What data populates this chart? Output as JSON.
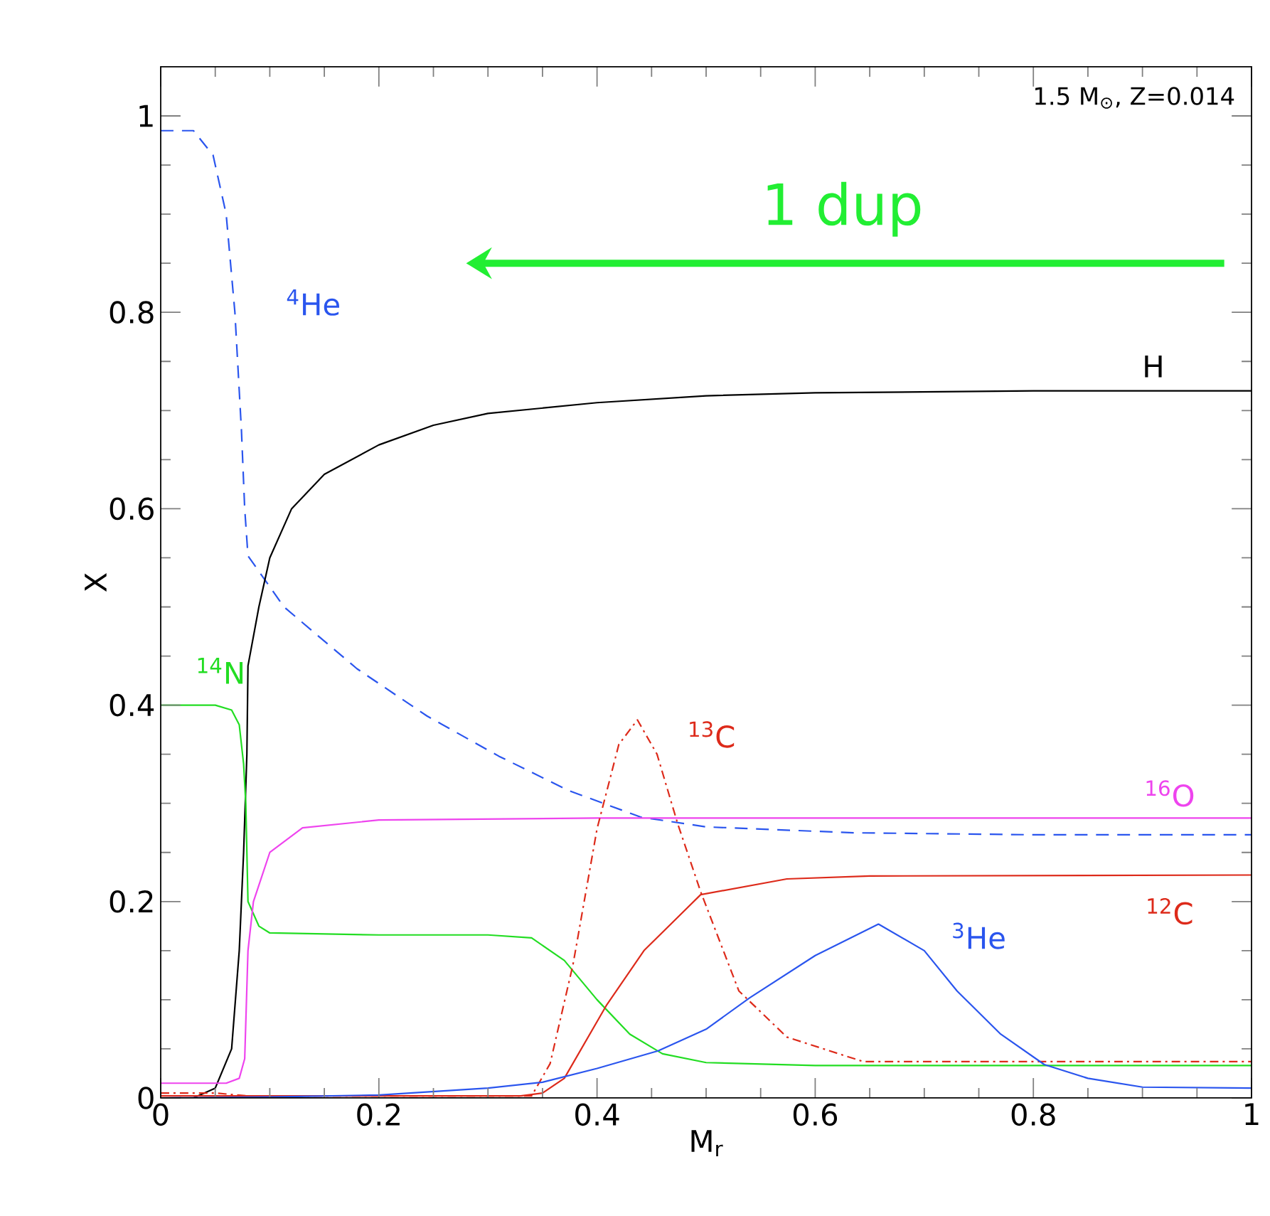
{
  "chart_data": {
    "type": "line",
    "xlabel": "M$_{r}$",
    "ylabel": "X",
    "xlim": [
      0,
      1
    ],
    "ylim": [
      0,
      1.05
    ],
    "xticks": [
      0,
      0.2,
      0.4,
      0.6,
      0.8,
      1
    ],
    "yticks": [
      0,
      0.2,
      0.4,
      0.6,
      0.8,
      1
    ],
    "grid": false,
    "legend": false,
    "marker": "none",
    "annotations": [
      "1.5 M$_{⊙}$, Z=0.014",
      "1 dup"
    ],
    "series": [
      {
        "name": "$^{4}$He",
        "color": "#2a55ee",
        "line_style": "dashed",
        "x": [
          0,
          0.03,
          0.048,
          0.06,
          0.068,
          0.074,
          0.077,
          0.08,
          0.113,
          0.18,
          0.244,
          0.31,
          0.374,
          0.44,
          0.5,
          0.635,
          0.8,
          1
        ],
        "values": [
          0.985,
          0.985,
          0.96,
          0.9,
          0.8,
          0.68,
          0.6,
          0.552,
          0.5,
          0.437,
          0.389,
          0.348,
          0.313,
          0.286,
          0.276,
          0.27,
          0.268,
          0.268
        ]
      },
      {
        "name": "H",
        "color": "#000000",
        "line_style": "solid",
        "x": [
          0,
          0.03,
          0.05,
          0.065,
          0.072,
          0.076,
          0.079,
          0.08,
          0.09,
          0.1,
          0.12,
          0.15,
          0.2,
          0.25,
          0.3,
          0.4,
          0.5,
          0.6,
          0.8,
          1
        ],
        "values": [
          0,
          0,
          0.01,
          0.05,
          0.15,
          0.25,
          0.35,
          0.44,
          0.5,
          0.55,
          0.6,
          0.635,
          0.665,
          0.685,
          0.697,
          0.708,
          0.715,
          0.718,
          0.72,
          0.72
        ]
      },
      {
        "name": "$^{14}$N",
        "color": "#22dd22",
        "line_style": "solid",
        "x": [
          0,
          0.05,
          0.065,
          0.072,
          0.076,
          0.078,
          0.08,
          0.09,
          0.1,
          0.2,
          0.3,
          0.34,
          0.37,
          0.4,
          0.43,
          0.46,
          0.5,
          0.6,
          1
        ],
        "values": [
          0.4,
          0.4,
          0.395,
          0.38,
          0.34,
          0.3,
          0.2,
          0.175,
          0.168,
          0.166,
          0.166,
          0.163,
          0.14,
          0.1,
          0.065,
          0.045,
          0.036,
          0.033,
          0.033
        ]
      },
      {
        "name": "$^{16}$O",
        "color": "#ee44ee",
        "line_style": "solid",
        "x": [
          0,
          0.06,
          0.072,
          0.077,
          0.08,
          0.085,
          0.1,
          0.13,
          0.2,
          0.4,
          1
        ],
        "values": [
          0.015,
          0.015,
          0.02,
          0.04,
          0.15,
          0.2,
          0.25,
          0.275,
          0.283,
          0.285,
          0.285
        ]
      },
      {
        "name": "$^{13}$C",
        "color": "#dd2a1a",
        "line_style": "dashdot",
        "x": [
          0,
          0.05,
          0.08,
          0.34,
          0.357,
          0.378,
          0.4,
          0.42,
          0.437,
          0.455,
          0.474,
          0.495,
          0.53,
          0.574,
          0.644,
          0.7,
          1
        ],
        "values": [
          0.005,
          0.005,
          0.002,
          0.002,
          0.035,
          0.136,
          0.274,
          0.36,
          0.385,
          0.35,
          0.279,
          0.21,
          0.109,
          0.062,
          0.037,
          0.037,
          0.037
        ]
      },
      {
        "name": "$^{12}$C",
        "color": "#dd2a1a",
        "line_style": "solid",
        "x": [
          0,
          0.33,
          0.35,
          0.37,
          0.409,
          0.443,
          0.495,
          0.574,
          0.65,
          1
        ],
        "values": [
          0.002,
          0.002,
          0.005,
          0.02,
          0.095,
          0.15,
          0.207,
          0.223,
          0.226,
          0.227
        ]
      },
      {
        "name": "$^{3}$He",
        "color": "#2a55ee",
        "line_style": "solid",
        "x": [
          0,
          0.1,
          0.2,
          0.3,
          0.35,
          0.4,
          0.456,
          0.5,
          0.54,
          0.6,
          0.658,
          0.7,
          0.73,
          0.77,
          0.81,
          0.85,
          0.9,
          1
        ],
        "values": [
          0,
          0.001,
          0.003,
          0.01,
          0.016,
          0.03,
          0.048,
          0.07,
          0.102,
          0.145,
          0.177,
          0.15,
          0.109,
          0.065,
          0.034,
          0.02,
          0.011,
          0.01
        ]
      }
    ]
  }
}
